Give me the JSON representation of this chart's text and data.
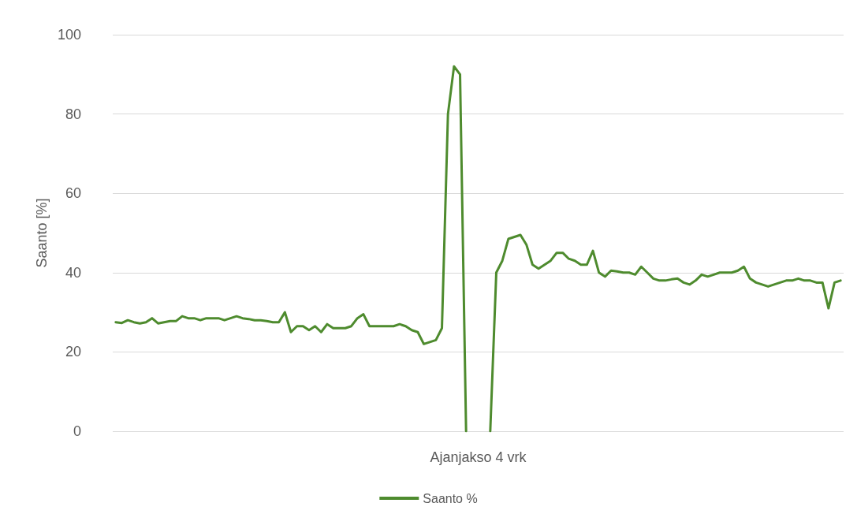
{
  "chart_data": {
    "type": "line",
    "xlabel": "Ajanjakso 4 vrk",
    "ylabel": "Saanto [%]",
    "categories": [
      null,
      null,
      null,
      null,
      null,
      null,
      null,
      null,
      null,
      null,
      null,
      null,
      null,
      null,
      null,
      null,
      null,
      null,
      null,
      null,
      null,
      null,
      null,
      null,
      null,
      null,
      null,
      null,
      null,
      null,
      null,
      null,
      null,
      null,
      null,
      null,
      null,
      null,
      null,
      null,
      null,
      null,
      null,
      null,
      null,
      null,
      null,
      null,
      null,
      null,
      null,
      null,
      null,
      null,
      null,
      null,
      null,
      null,
      null,
      null,
      null,
      null,
      null,
      null,
      null,
      null,
      null,
      null,
      null,
      null,
      null,
      null,
      null,
      null,
      null,
      null,
      null,
      null,
      null,
      null,
      null,
      null,
      null,
      null,
      null,
      null,
      null,
      null,
      null,
      null,
      null,
      null,
      null,
      null,
      null,
      null,
      null,
      null,
      null,
      null,
      null,
      null,
      null,
      null,
      null,
      null,
      null,
      null,
      null,
      null,
      null,
      null,
      null,
      null,
      null,
      null,
      null,
      null,
      null,
      null,
      null
    ],
    "series": [
      {
        "name": "Saanto %",
        "color": "#4e8b2e",
        "values": [
          27.5,
          27.3,
          28,
          27.5,
          27.2,
          27.5,
          28.5,
          27.2,
          27.5,
          27.8,
          27.8,
          29,
          28.5,
          28.5,
          28,
          28.5,
          28.5,
          28.5,
          28,
          28.5,
          29,
          28.5,
          28.3,
          28,
          28,
          27.8,
          27.5,
          27.5,
          30,
          25,
          26.5,
          26.5,
          25.5,
          26.5,
          25,
          27,
          26,
          26,
          26,
          26.5,
          28.5,
          29.5,
          26.5,
          26.5,
          26.5,
          26.5,
          26.5,
          27,
          26.5,
          25.5,
          25,
          22,
          22.5,
          23,
          26,
          80,
          92,
          90,
          0,
          null,
          null,
          null,
          0,
          40,
          43,
          48.5,
          49,
          49.5,
          47,
          42,
          41,
          42,
          43,
          45,
          45,
          43.5,
          43,
          42,
          42,
          45.5,
          40,
          39,
          40.5,
          40.3,
          40,
          40,
          39.5,
          41.5,
          40,
          38.5,
          38,
          38,
          38.3,
          38.5,
          37.5,
          37,
          38,
          39.5,
          39,
          39.5,
          40,
          40,
          40,
          40.5,
          41.5,
          38.5,
          37.5,
          37,
          36.5,
          37,
          37.5,
          38,
          38,
          38.5,
          38,
          38,
          37.5,
          37.5,
          31,
          37.5,
          38
        ]
      }
    ],
    "ylim": [
      0,
      100
    ],
    "yticks": [
      0,
      20,
      40,
      60,
      80,
      100
    ],
    "grid": "y",
    "legend": "bottom",
    "line_style": "solid",
    "marker": "none"
  }
}
